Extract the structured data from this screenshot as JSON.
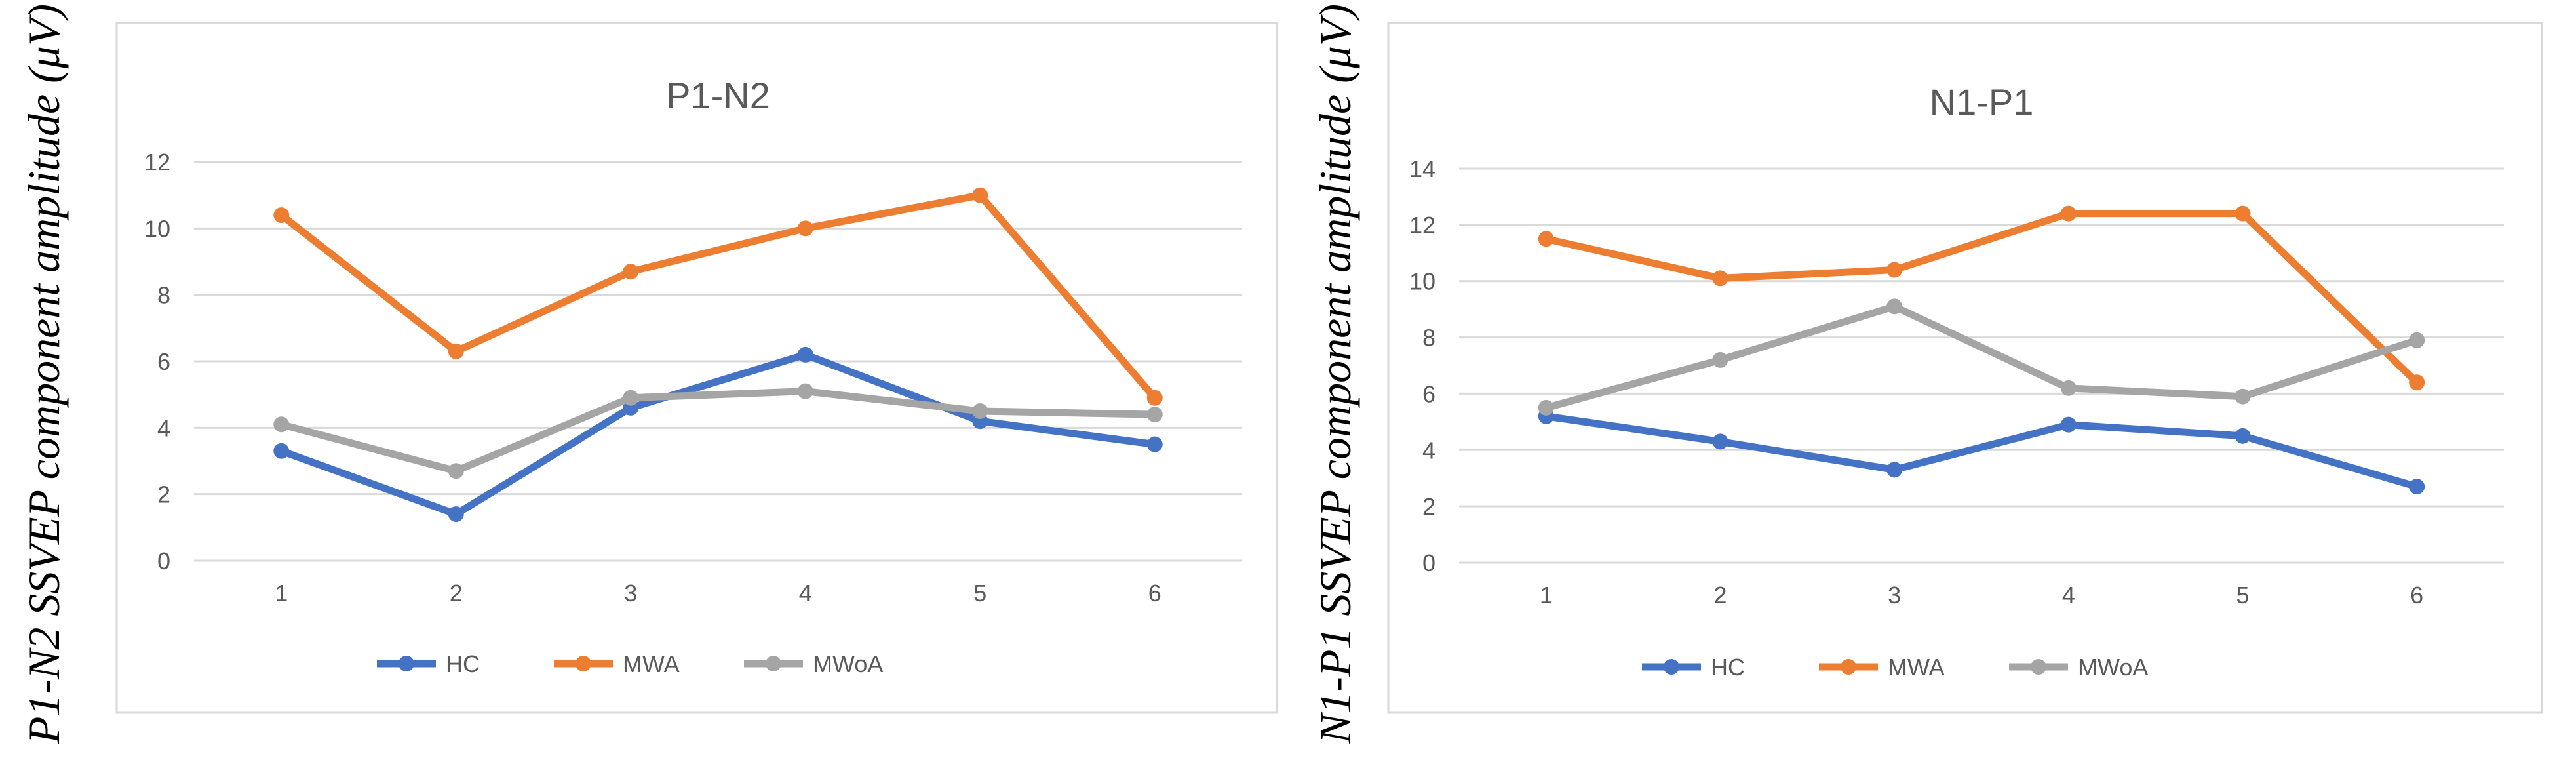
{
  "chart_data": [
    {
      "type": "line",
      "title": "P1-N2",
      "xlabel": "",
      "ylabel": "P1-N2 SSVEP component amplitude (μV)",
      "categories": [
        "1",
        "2",
        "3",
        "4",
        "5",
        "6"
      ],
      "ylim": [
        0,
        12
      ],
      "yticks": [
        "0",
        "2",
        "4",
        "6",
        "8",
        "10",
        "12"
      ],
      "grid": true,
      "legend": "bottom",
      "series": [
        {
          "name": "HC",
          "color": "#4472C4",
          "values": [
            3.3,
            1.4,
            4.6,
            6.2,
            4.2,
            3.5
          ]
        },
        {
          "name": "MWA",
          "color": "#ED7D31",
          "values": [
            10.4,
            6.3,
            8.7,
            10.0,
            11.0,
            4.9
          ]
        },
        {
          "name": "MWoA",
          "color": "#A5A5A5",
          "values": [
            4.1,
            2.7,
            4.9,
            5.1,
            4.5,
            4.4
          ]
        }
      ]
    },
    {
      "type": "line",
      "title": "N1-P1",
      "xlabel": "",
      "ylabel": "N1-P1 SSVEP component amplitude (μV)",
      "categories": [
        "1",
        "2",
        "3",
        "4",
        "5",
        "6"
      ],
      "ylim": [
        0,
        14
      ],
      "yticks": [
        "0",
        "2",
        "4",
        "6",
        "8",
        "10",
        "12",
        "14"
      ],
      "grid": true,
      "legend": "bottom",
      "series": [
        {
          "name": "HC",
          "color": "#4472C4",
          "values": [
            5.2,
            4.3,
            3.3,
            4.9,
            4.5,
            2.7
          ]
        },
        {
          "name": "MWA",
          "color": "#ED7D31",
          "values": [
            11.5,
            10.1,
            10.4,
            12.4,
            12.4,
            6.4
          ]
        },
        {
          "name": "MWoA",
          "color": "#A5A5A5",
          "values": [
            5.5,
            7.2,
            9.1,
            6.2,
            5.9,
            7.9
          ]
        }
      ]
    }
  ]
}
